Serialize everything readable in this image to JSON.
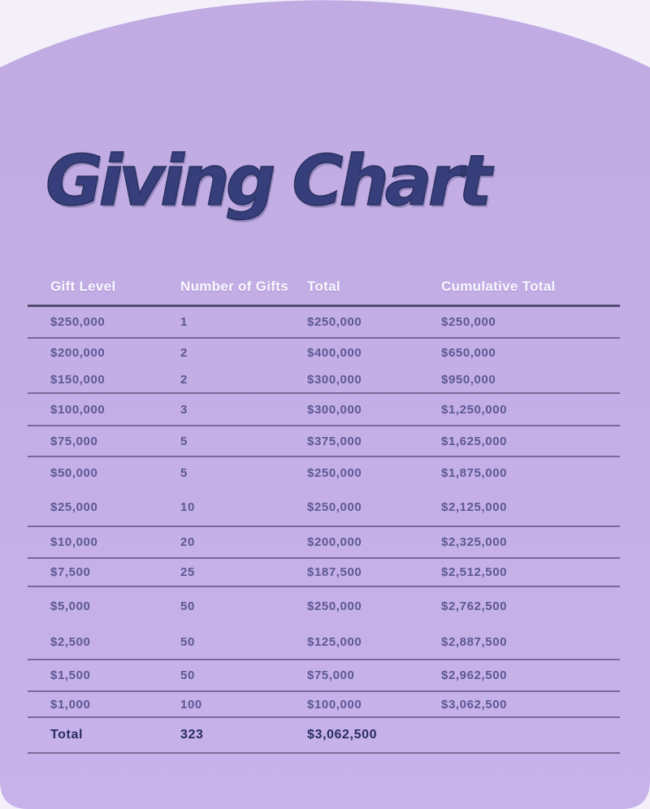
{
  "page": {
    "title": "Giving Chart"
  },
  "colors": {
    "outer_background": "#f4f0fa",
    "panel_purple": "#c3afe5",
    "title_navy": "#363e7c",
    "header_text": "#fbf8ff",
    "row_text": "#5c5894",
    "total_text": "#272d64",
    "divider": "#4a4366"
  },
  "table": {
    "columns": [
      "Gift Level",
      "Number of Gifts",
      "Total",
      "Cumulative Total"
    ],
    "rows": [
      {
        "gift_level": "$250,000",
        "number_of_gifts": "1",
        "total": "$250,000",
        "cumulative_total": "$250,000"
      },
      {
        "gift_level": "$200,000",
        "number_of_gifts": "2",
        "total": "$400,000",
        "cumulative_total": "$650,000"
      },
      {
        "gift_level": "$150,000",
        "number_of_gifts": "2",
        "total": "$300,000",
        "cumulative_total": "$950,000"
      },
      {
        "gift_level": "$100,000",
        "number_of_gifts": "3",
        "total": "$300,000",
        "cumulative_total": "$1,250,000"
      },
      {
        "gift_level": "$75,000",
        "number_of_gifts": "5",
        "total": "$375,000",
        "cumulative_total": "$1,625,000"
      },
      {
        "gift_level": "$50,000",
        "number_of_gifts": "5",
        "total": "$250,000",
        "cumulative_total": "$1,875,000"
      },
      {
        "gift_level": "$25,000",
        "number_of_gifts": "10",
        "total": "$250,000",
        "cumulative_total": "$2,125,000"
      },
      {
        "gift_level": "$10,000",
        "number_of_gifts": "20",
        "total": "$200,000",
        "cumulative_total": "$2,325,000"
      },
      {
        "gift_level": "$7,500",
        "number_of_gifts": "25",
        "total": "$187,500",
        "cumulative_total": "$2,512,500"
      },
      {
        "gift_level": "$5,000",
        "number_of_gifts": "50",
        "total": "$250,000",
        "cumulative_total": "$2,762,500"
      },
      {
        "gift_level": "$2,500",
        "number_of_gifts": "50",
        "total": "$125,000",
        "cumulative_total": "$2,887,500"
      },
      {
        "gift_level": "$1,500",
        "number_of_gifts": "50",
        "total": "$75,000",
        "cumulative_total": "$2,962,500"
      },
      {
        "gift_level": "$1,000",
        "number_of_gifts": "100",
        "total": "$100,000",
        "cumulative_total": "$3,062,500"
      }
    ],
    "total_row": {
      "label": "Total",
      "number_of_gifts": "323",
      "total": "$3,062,500",
      "cumulative_total": ""
    }
  }
}
